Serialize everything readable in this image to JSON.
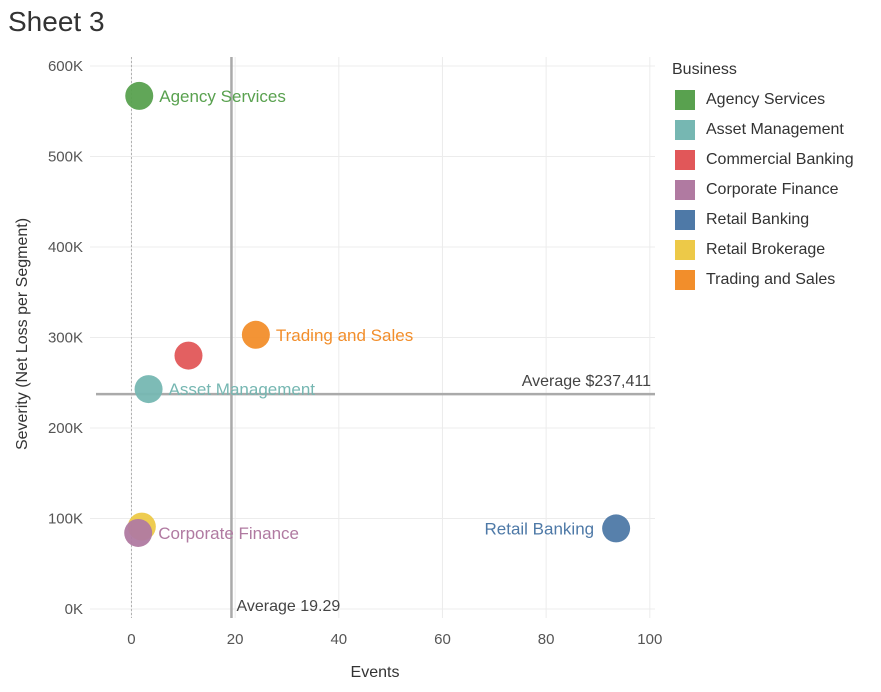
{
  "sheet": {
    "title": "Sheet 3"
  },
  "legend": {
    "title": "Business",
    "items": [
      {
        "label": "Agency Services",
        "color": "#59a14f"
      },
      {
        "label": "Asset Management",
        "color": "#76b7b2"
      },
      {
        "label": "Commercial Banking",
        "color": "#e15759"
      },
      {
        "label": "Corporate Finance",
        "color": "#b07aa1"
      },
      {
        "label": "Retail Banking",
        "color": "#4e79a7"
      },
      {
        "label": "Retail Brokerage",
        "color": "#edc948"
      },
      {
        "label": "Trading and Sales",
        "color": "#f28e2b"
      }
    ]
  },
  "chart_data": {
    "type": "scatter",
    "xlabel": "Events",
    "ylabel": "Severity (Net Loss per Segment)",
    "xlim": [
      -8,
      101
    ],
    "ylim": [
      -10000,
      610000
    ],
    "x_ticks": [
      0,
      20,
      40,
      60,
      80,
      100
    ],
    "y_ticks": [
      0,
      100000,
      200000,
      300000,
      400000,
      500000,
      600000
    ],
    "y_tick_labels": [
      "0K",
      "100K",
      "200K",
      "300K",
      "400K",
      "500K",
      "600K"
    ],
    "grid": true,
    "legend_position": "right",
    "points": [
      {
        "name": "Agency Services",
        "x": 1.5,
        "y": 567000,
        "color": "#59a14f",
        "label": "Agency Services",
        "label_side": "right"
      },
      {
        "name": "Asset Management",
        "x": 3.3,
        "y": 243000,
        "color": "#76b7b2",
        "label": "Asset Management",
        "label_side": "right"
      },
      {
        "name": "Commercial Banking",
        "x": 11,
        "y": 280000,
        "color": "#e15759",
        "label": "",
        "label_side": "right"
      },
      {
        "name": "Retail Brokerage",
        "x": 2,
        "y": 91000,
        "color": "#edc948",
        "label": "",
        "label_side": "right"
      },
      {
        "name": "Corporate Finance",
        "x": 1.3,
        "y": 84000,
        "color": "#b07aa1",
        "label": "Corporate Finance",
        "label_side": "right"
      },
      {
        "name": "Retail Banking",
        "x": 93.5,
        "y": 89000,
        "color": "#4e79a7",
        "label": "Retail Banking",
        "label_side": "left"
      },
      {
        "name": "Trading and Sales",
        "x": 24,
        "y": 303000,
        "color": "#f28e2b",
        "label": "Trading and Sales",
        "label_side": "right"
      }
    ],
    "reference_lines": {
      "x_average": {
        "value": 19.29,
        "label": "Average 19.29"
      },
      "y_average": {
        "value": 237411,
        "label": "Average $237,411"
      }
    }
  }
}
